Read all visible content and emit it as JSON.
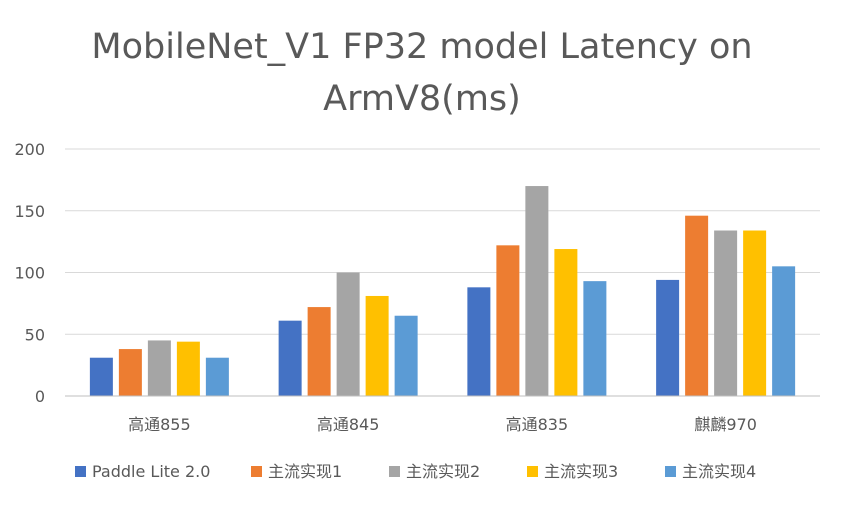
{
  "chart_data": {
    "type": "bar",
    "title_lines": [
      "MobileNet_V1 FP32 model Latency on",
      "ArmV8(ms)"
    ],
    "categories": [
      "高通855",
      "高通845",
      "高通835",
      "麒麟970"
    ],
    "ylim": [
      0,
      200
    ],
    "yticks": [
      "0",
      "50",
      "100",
      "150",
      "200"
    ],
    "grid": true,
    "legend_position": "bottom",
    "series": [
      {
        "name": "Paddle Lite 2.0",
        "color": "#4472c4",
        "values": [
          31,
          61,
          88,
          94
        ]
      },
      {
        "name": "主流实现1",
        "color": "#ed7d31",
        "values": [
          38,
          72,
          122,
          146
        ]
      },
      {
        "name": "主流实现2",
        "color": "#a5a5a5",
        "values": [
          45,
          100,
          170,
          134
        ]
      },
      {
        "name": "主流实现3",
        "color": "#ffc000",
        "values": [
          44,
          81,
          119,
          134
        ]
      },
      {
        "name": "主流实现4",
        "color": "#5b9bd5",
        "values": [
          31,
          65,
          93,
          105
        ]
      }
    ]
  }
}
